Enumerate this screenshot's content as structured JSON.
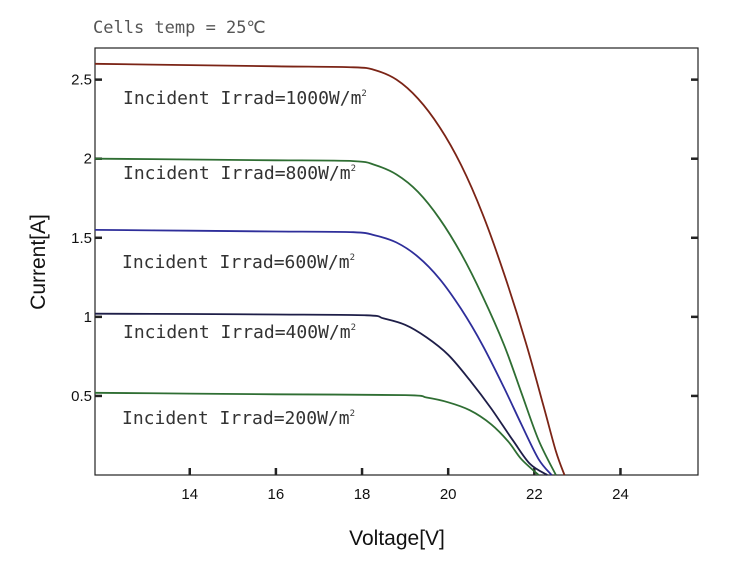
{
  "chart_data": {
    "type": "line",
    "title": "Cells temp = 25℃",
    "xlabel": "Voltage[V]",
    "ylabel": "Current[A]",
    "xlim": [
      11.8,
      25.8
    ],
    "ylim": [
      0,
      2.7
    ],
    "x_ticks": [
      14,
      16,
      18,
      20,
      22,
      24
    ],
    "x_tick_labels": [
      "14",
      "16",
      "18",
      "20",
      "22",
      "24"
    ],
    "y_ticks": [
      0.5,
      1,
      1.5,
      2,
      2.5
    ],
    "y_tick_labels": [
      "0.5",
      "1",
      "1.5",
      "2",
      "2.5"
    ],
    "grid": false,
    "series": [
      {
        "label": "Incident Irrad=1000W/",
        "unit_base": "m",
        "unit_sup": "2",
        "color": "#7b2416",
        "points": [
          [
            11.8,
            2.6
          ],
          [
            14,
            2.592
          ],
          [
            16,
            2.584
          ],
          [
            17.8,
            2.578
          ],
          [
            18.3,
            2.56
          ],
          [
            18.8,
            2.5
          ],
          [
            19.3,
            2.38
          ],
          [
            19.8,
            2.2
          ],
          [
            20.3,
            1.96
          ],
          [
            20.8,
            1.65
          ],
          [
            21.3,
            1.27
          ],
          [
            21.8,
            0.84
          ],
          [
            22.2,
            0.45
          ],
          [
            22.5,
            0.15
          ],
          [
            22.7,
            0.0
          ]
        ]
      },
      {
        "label": "Incident Irrad=800W/",
        "unit_base": "m",
        "unit_sup": "2",
        "color": "#2f6e33",
        "points": [
          [
            11.8,
            2.0
          ],
          [
            14,
            1.995
          ],
          [
            16,
            1.99
          ],
          [
            17.8,
            1.985
          ],
          [
            18.3,
            1.96
          ],
          [
            18.8,
            1.9
          ],
          [
            19.3,
            1.79
          ],
          [
            19.8,
            1.62
          ],
          [
            20.3,
            1.4
          ],
          [
            20.8,
            1.13
          ],
          [
            21.3,
            0.82
          ],
          [
            21.7,
            0.52
          ],
          [
            22.1,
            0.22
          ],
          [
            22.5,
            0.0
          ]
        ]
      },
      {
        "label": "Incident Irrad=600W/",
        "unit_base": "m",
        "unit_sup": "2",
        "color": "#2e2e9a",
        "points": [
          [
            11.8,
            1.55
          ],
          [
            14,
            1.545
          ],
          [
            16,
            1.54
          ],
          [
            17.8,
            1.535
          ],
          [
            18.3,
            1.515
          ],
          [
            18.8,
            1.47
          ],
          [
            19.3,
            1.38
          ],
          [
            19.8,
            1.24
          ],
          [
            20.3,
            1.05
          ],
          [
            20.8,
            0.82
          ],
          [
            21.3,
            0.55
          ],
          [
            21.7,
            0.32
          ],
          [
            22.1,
            0.1
          ],
          [
            22.4,
            0.0
          ]
        ]
      },
      {
        "label": "Incident Irrad=400W/",
        "unit_base": "m",
        "unit_sup": "2",
        "color": "#1e1e48",
        "points": [
          [
            11.8,
            1.02
          ],
          [
            14,
            1.018
          ],
          [
            16,
            1.015
          ],
          [
            18.1,
            1.01
          ],
          [
            18.5,
            0.99
          ],
          [
            19,
            0.95
          ],
          [
            19.5,
            0.87
          ],
          [
            20,
            0.76
          ],
          [
            20.5,
            0.6
          ],
          [
            21,
            0.42
          ],
          [
            21.5,
            0.22
          ],
          [
            21.9,
            0.07
          ],
          [
            22.3,
            0.0
          ]
        ]
      },
      {
        "label": "Incident Irrad=200W/",
        "unit_base": "m",
        "unit_sup": "2",
        "color": "#2f6e33",
        "points": [
          [
            11.8,
            0.52
          ],
          [
            14,
            0.515
          ],
          [
            16,
            0.51
          ],
          [
            19,
            0.505
          ],
          [
            19.5,
            0.49
          ],
          [
            20,
            0.46
          ],
          [
            20.5,
            0.41
          ],
          [
            21,
            0.32
          ],
          [
            21.4,
            0.21
          ],
          [
            21.7,
            0.1
          ],
          [
            22.1,
            0.0
          ]
        ]
      }
    ]
  }
}
